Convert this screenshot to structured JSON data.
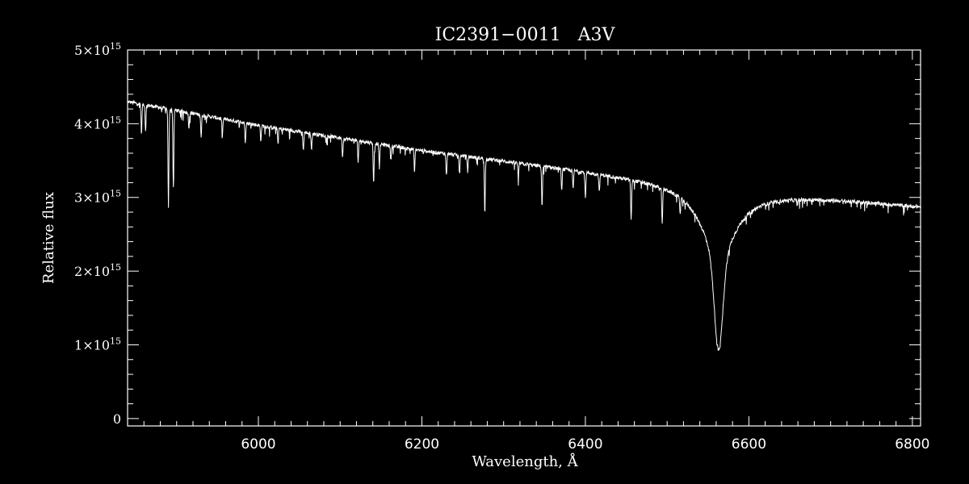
{
  "chart_data": {
    "type": "line",
    "title": "IC2391−0011   A3V",
    "xlabel": "Wavelength, Å",
    "ylabel": "Relative flux",
    "xlim": [
      5840,
      6810
    ],
    "ylim": [
      -100000000000000.0,
      5000000000000000.0
    ],
    "x_ticks": [
      6000,
      6200,
      6400,
      6600,
      6800
    ],
    "x_tick_labels": [
      "6000",
      "6200",
      "6400",
      "6600",
      "6800"
    ],
    "y_ticks": [
      0,
      1000000000000000.0,
      2000000000000000.0,
      3000000000000000.0,
      4000000000000000.0,
      5000000000000000.0
    ],
    "y_tick_labels": [
      {
        "mant": "0",
        "exp": ""
      },
      {
        "mant": "1×10",
        "exp": "15"
      },
      {
        "mant": "2×10",
        "exp": "15"
      },
      {
        "mant": "3×10",
        "exp": "15"
      },
      {
        "mant": "4×10",
        "exp": "15"
      },
      {
        "mant": "5×10",
        "exp": "15"
      }
    ],
    "continuum": [
      [
        5840,
        4300000000000000.0
      ],
      [
        6000,
        3980000000000000.0
      ],
      [
        6200,
        3640000000000000.0
      ],
      [
        6400,
        3360000000000000.0
      ],
      [
        6500,
        3220000000000000.0
      ],
      [
        6600,
        3070000000000000.0
      ],
      [
        6700,
        2990000000000000.0
      ],
      [
        6810,
        2880000000000000.0
      ]
    ],
    "absorption_lines": [
      [
        5857,
        400000000000000.0
      ],
      [
        5862,
        350000000000000.0
      ],
      [
        5890,
        1350000000000000.0
      ],
      [
        5896,
        1050000000000000.0
      ],
      [
        5915,
        200000000000000.0
      ],
      [
        5930,
        300000000000000.0
      ],
      [
        5956,
        220000000000000.0
      ],
      [
        5984,
        250000000000000.0
      ],
      [
        6003,
        200000000000000.0
      ],
      [
        6024,
        200000000000000.0
      ],
      [
        6055,
        250000000000000.0
      ],
      [
        6065,
        200000000000000.0
      ],
      [
        6103,
        250000000000000.0
      ],
      [
        6122,
        300000000000000.0
      ],
      [
        6141,
        550000000000000.0
      ],
      [
        6148,
        320000000000000.0
      ],
      [
        6162,
        200000000000000.0
      ],
      [
        6191,
        300000000000000.0
      ],
      [
        6230,
        300000000000000.0
      ],
      [
        6246,
        250000000000000.0
      ],
      [
        6256,
        200000000000000.0
      ],
      [
        6277,
        750000000000000.0
      ],
      [
        6318,
        200000000000000.0
      ],
      [
        6347,
        550000000000000.0
      ],
      [
        6371,
        300000000000000.0
      ],
      [
        6385,
        250000000000000.0
      ],
      [
        6400,
        200000000000000.0
      ],
      [
        6417,
        250000000000000.0
      ],
      [
        6456,
        550000000000000.0
      ],
      [
        6494,
        500000000000000.0
      ],
      [
        6516,
        220000000000000.0
      ],
      [
        6400,
        150000000000000.0
      ]
    ],
    "halpha": {
      "center": 6563,
      "depth": 2200000000000000.0,
      "width": 5,
      "wing_width": 24
    },
    "line_color": "#ffffff",
    "background": "#000000",
    "grid": false
  }
}
